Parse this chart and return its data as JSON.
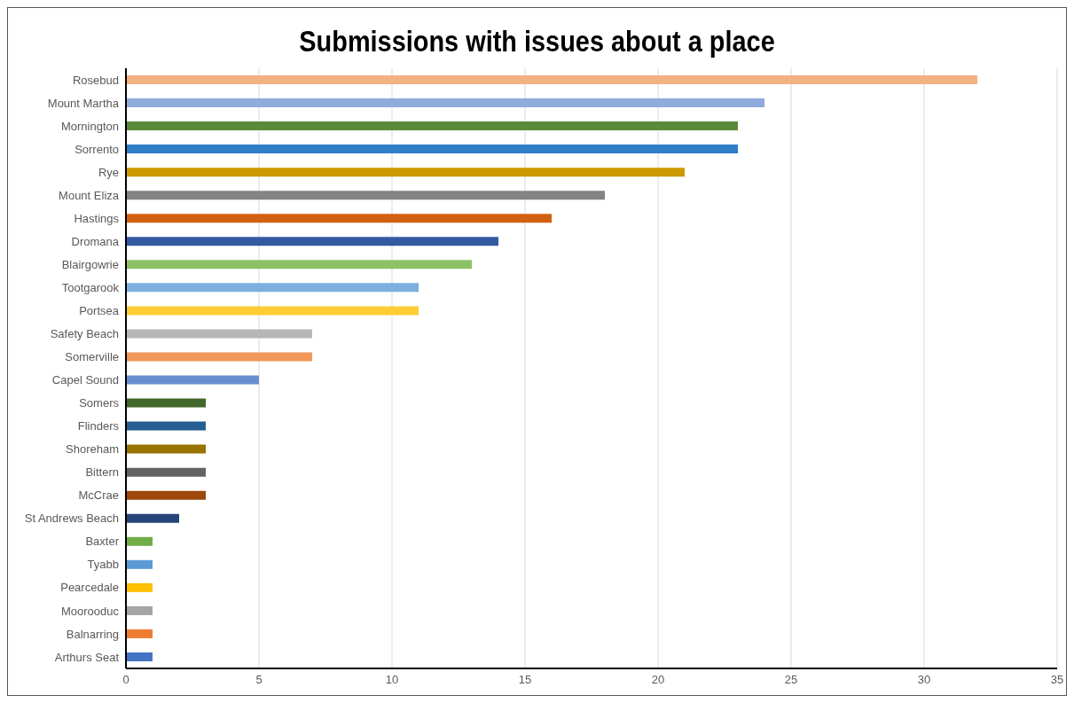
{
  "chart_data": {
    "type": "bar",
    "orientation": "horizontal",
    "title": "Submissions with issues about a place",
    "categories": [
      "Rosebud",
      "Mount Martha",
      "Mornington",
      "Sorrento",
      "Rye",
      "Mount Eliza",
      "Hastings",
      "Dromana",
      "Blairgowrie",
      "Tootgarook",
      "Portsea",
      "Safety Beach",
      "Somerville",
      "Capel Sound",
      "Somers",
      "Flinders",
      "Shoreham",
      "Bittern",
      "McCrae",
      "St Andrews Beach",
      "Baxter",
      "Tyabb",
      "Pearcedale",
      "Moorooduc",
      "Balnarring",
      "Arthurs Seat"
    ],
    "values": [
      32,
      24,
      23,
      23,
      21,
      18,
      16,
      14,
      13,
      11,
      11,
      7,
      7,
      5,
      3,
      3,
      3,
      3,
      3,
      2,
      1,
      1,
      1,
      1,
      1,
      1
    ],
    "colors": [
      "#f4b183",
      "#8faadc",
      "#5a8a39",
      "#2f7ec7",
      "#cc9a00",
      "#848484",
      "#d26012",
      "#335aa1",
      "#8cc168",
      "#7cafdd",
      "#ffcd33",
      "#b7b7b7",
      "#f1975a",
      "#698ed0",
      "#43682b",
      "#255e91",
      "#997300",
      "#636363",
      "#9e480e",
      "#264478",
      "#70ad47",
      "#5b9bd5",
      "#ffc000",
      "#a5a5a5",
      "#ed7d31",
      "#4472c4"
    ],
    "xlim": [
      0,
      35
    ],
    "xticks": [
      0,
      5,
      10,
      15,
      20,
      25,
      30,
      35
    ],
    "grid": "x",
    "legend": false
  }
}
